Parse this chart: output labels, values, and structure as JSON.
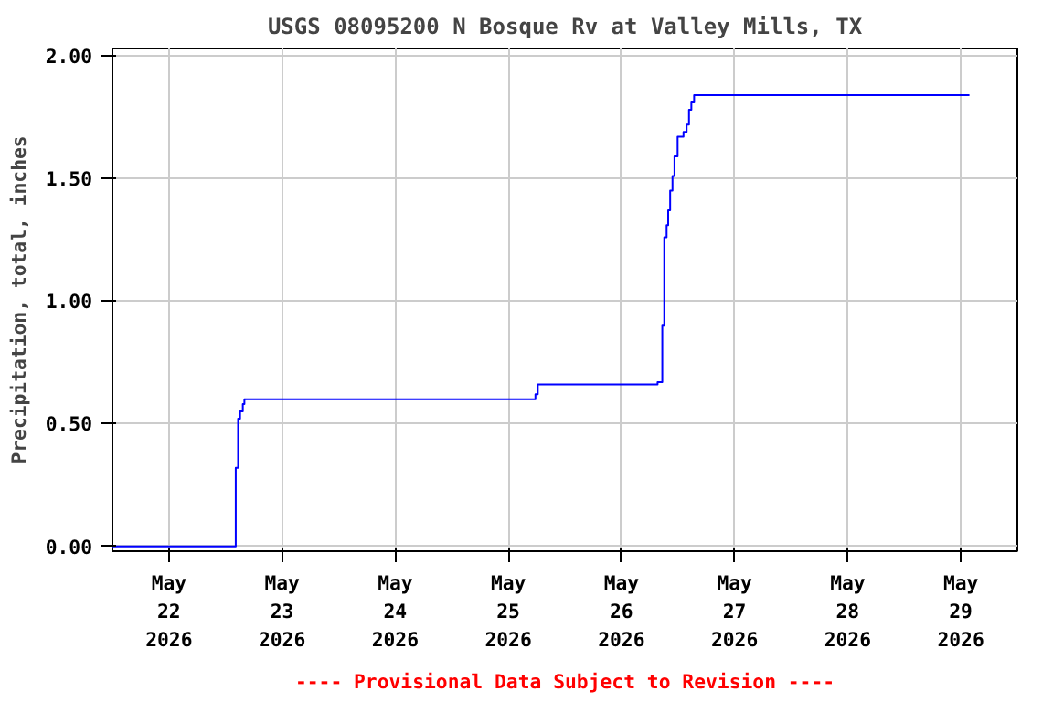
{
  "chart_data": {
    "type": "step",
    "title": "USGS 08095200 N Bosque Rv at Valley Mills, TX",
    "ylabel": "Precipitation, total, inches",
    "x": [
      "2026-05-21T12:00",
      "2026-05-22T14:10",
      "2026-05-22T14:40",
      "2026-05-22T15:05",
      "2026-05-22T15:40",
      "2026-05-22T16:00",
      "2026-05-25T05:45",
      "2026-05-25T06:15",
      "2026-05-26T07:40",
      "2026-05-26T08:40",
      "2026-05-26T09:05",
      "2026-05-26T09:35",
      "2026-05-26T09:55",
      "2026-05-26T10:20",
      "2026-05-26T10:50",
      "2026-05-26T11:15",
      "2026-05-26T11:55",
      "2026-05-26T13:10",
      "2026-05-26T13:50",
      "2026-05-26T14:20",
      "2026-05-26T14:50",
      "2026-05-26T15:25",
      "2026-05-29T01:50"
    ],
    "series": [
      {
        "color": "#0000ff",
        "values": [
          0.0,
          0.32,
          0.52,
          0.55,
          0.58,
          0.6,
          0.62,
          0.66,
          0.67,
          0.9,
          1.26,
          1.31,
          1.37,
          1.45,
          1.51,
          1.59,
          1.67,
          1.69,
          1.72,
          1.78,
          1.81,
          1.84,
          1.84
        ]
      }
    ],
    "xlim": [
      "2026-05-21T12:00",
      "2026-05-29T12:00"
    ],
    "xticks": [
      {
        "value": "2026-05-22",
        "label": "May\n22\n2026"
      },
      {
        "value": "2026-05-23",
        "label": "May\n23\n2026"
      },
      {
        "value": "2026-05-24",
        "label": "May\n24\n2026"
      },
      {
        "value": "2026-05-25",
        "label": "May\n25\n2026"
      },
      {
        "value": "2026-05-26",
        "label": "May\n26\n2026"
      },
      {
        "value": "2026-05-27",
        "label": "May\n27\n2026"
      },
      {
        "value": "2026-05-28",
        "label": "May\n28\n2026"
      },
      {
        "value": "2026-05-29",
        "label": "May\n29\n2026"
      }
    ],
    "ylim": [
      -0.02,
      2.03
    ],
    "yticks": [
      {
        "value": 0,
        "label": "0.00"
      },
      {
        "value": 0.5,
        "label": "0.50"
      },
      {
        "value": 1.0,
        "label": "1.00"
      },
      {
        "value": 1.5,
        "label": "1.50"
      },
      {
        "value": 2.0,
        "label": "2.00"
      }
    ],
    "grid": true,
    "annotations": [
      "---- Provisional Data Subject to Revision ----"
    ]
  }
}
